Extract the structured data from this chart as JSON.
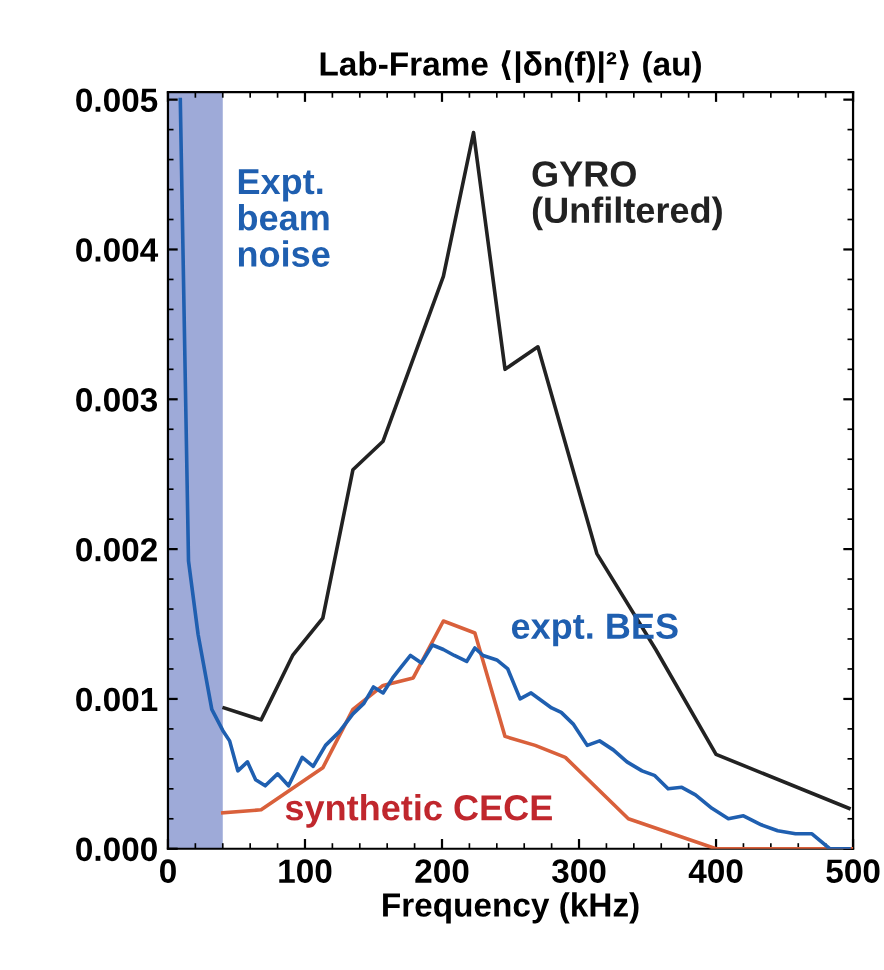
{
  "chart_data": {
    "type": "line",
    "title": "Lab-Frame ⟨|δn(f)|²⟩ (au)",
    "xlabel": "Frequency (kHz)",
    "xlim": [
      0,
      500
    ],
    "xticks": [
      0,
      100,
      200,
      300,
      400,
      500
    ],
    "ylim": [
      0,
      0.00505
    ],
    "yticks": [
      {
        "value": 0,
        "label": "0.000"
      },
      {
        "value": 0.001,
        "label": "0.001"
      },
      {
        "value": 0.002,
        "label": "0.002"
      },
      {
        "value": 0.003,
        "label": "0.003"
      },
      {
        "value": 0.004,
        "label": "0.004"
      },
      {
        "value": 0.005,
        "label": "0.005"
      }
    ],
    "grid": false,
    "legend": false,
    "bands": [
      {
        "axis": "x",
        "from": 0,
        "to": 40,
        "label": "Expt.\nbeam\nnoise",
        "color": "#9eaad8"
      }
    ],
    "series": [
      {
        "name": "GYRO\n(Unfiltered)",
        "color": "#222222",
        "x": [
          41,
          68,
          91,
          113,
          135,
          157,
          201,
          223,
          246,
          270,
          313,
          356,
          400,
          497
        ],
        "values": [
          0.00094,
          0.00086,
          0.00129,
          0.00154,
          0.00253,
          0.00272,
          0.00382,
          0.00478,
          0.0032,
          0.00335,
          0.00197,
          0.00133,
          0.00063,
          0.00027
        ]
      },
      {
        "name": "synthetic CECE",
        "color": "#d9603b",
        "x": [
          40,
          68,
          113,
          135,
          157,
          179,
          201,
          224,
          246,
          268,
          290,
          336,
          400,
          470,
          500
        ],
        "values": [
          0.00024,
          0.00026,
          0.00054,
          0.00093,
          0.00109,
          0.00114,
          0.00152,
          0.00144,
          0.00075,
          0.00069,
          0.00061,
          0.0002,
          0,
          0,
          0
        ]
      },
      {
        "name": "expt. BES",
        "color": "#1f5fb0",
        "x": [
          9,
          15,
          22,
          32,
          40,
          45,
          51,
          58,
          64,
          71,
          80,
          88,
          98,
          106,
          115,
          125,
          135,
          143,
          150,
          157,
          164,
          170,
          177,
          185,
          193,
          201,
          209,
          218,
          224,
          230,
          240,
          248,
          257,
          265,
          274,
          280,
          287,
          296,
          306,
          315,
          325,
          335,
          346,
          355,
          365,
          375,
          385,
          397,
          409,
          420,
          433,
          445,
          458,
          470,
          483,
          490,
          497
        ],
        "values": [
          0.005,
          0.00192,
          0.00143,
          0.00093,
          0.00079,
          0.00072,
          0.00052,
          0.00058,
          0.00046,
          0.00042,
          0.0005,
          0.00042,
          0.00061,
          0.00055,
          0.00069,
          0.00078,
          0.0009,
          0.00097,
          0.00108,
          0.00104,
          0.00114,
          0.00121,
          0.00129,
          0.00124,
          0.00136,
          0.00133,
          0.00129,
          0.00125,
          0.00134,
          0.00129,
          0.00126,
          0.0012,
          0.001,
          0.00104,
          0.00098,
          0.00094,
          0.00091,
          0.00083,
          0.00069,
          0.00072,
          0.00066,
          0.00058,
          0.00052,
          0.00049,
          0.0004,
          0.00041,
          0.00036,
          0.00027,
          0.0002,
          0.00022,
          0.00016,
          0.00012,
          0.0001,
          0.0001,
          0.0,
          0.0,
          0.0
        ]
      }
    ]
  }
}
